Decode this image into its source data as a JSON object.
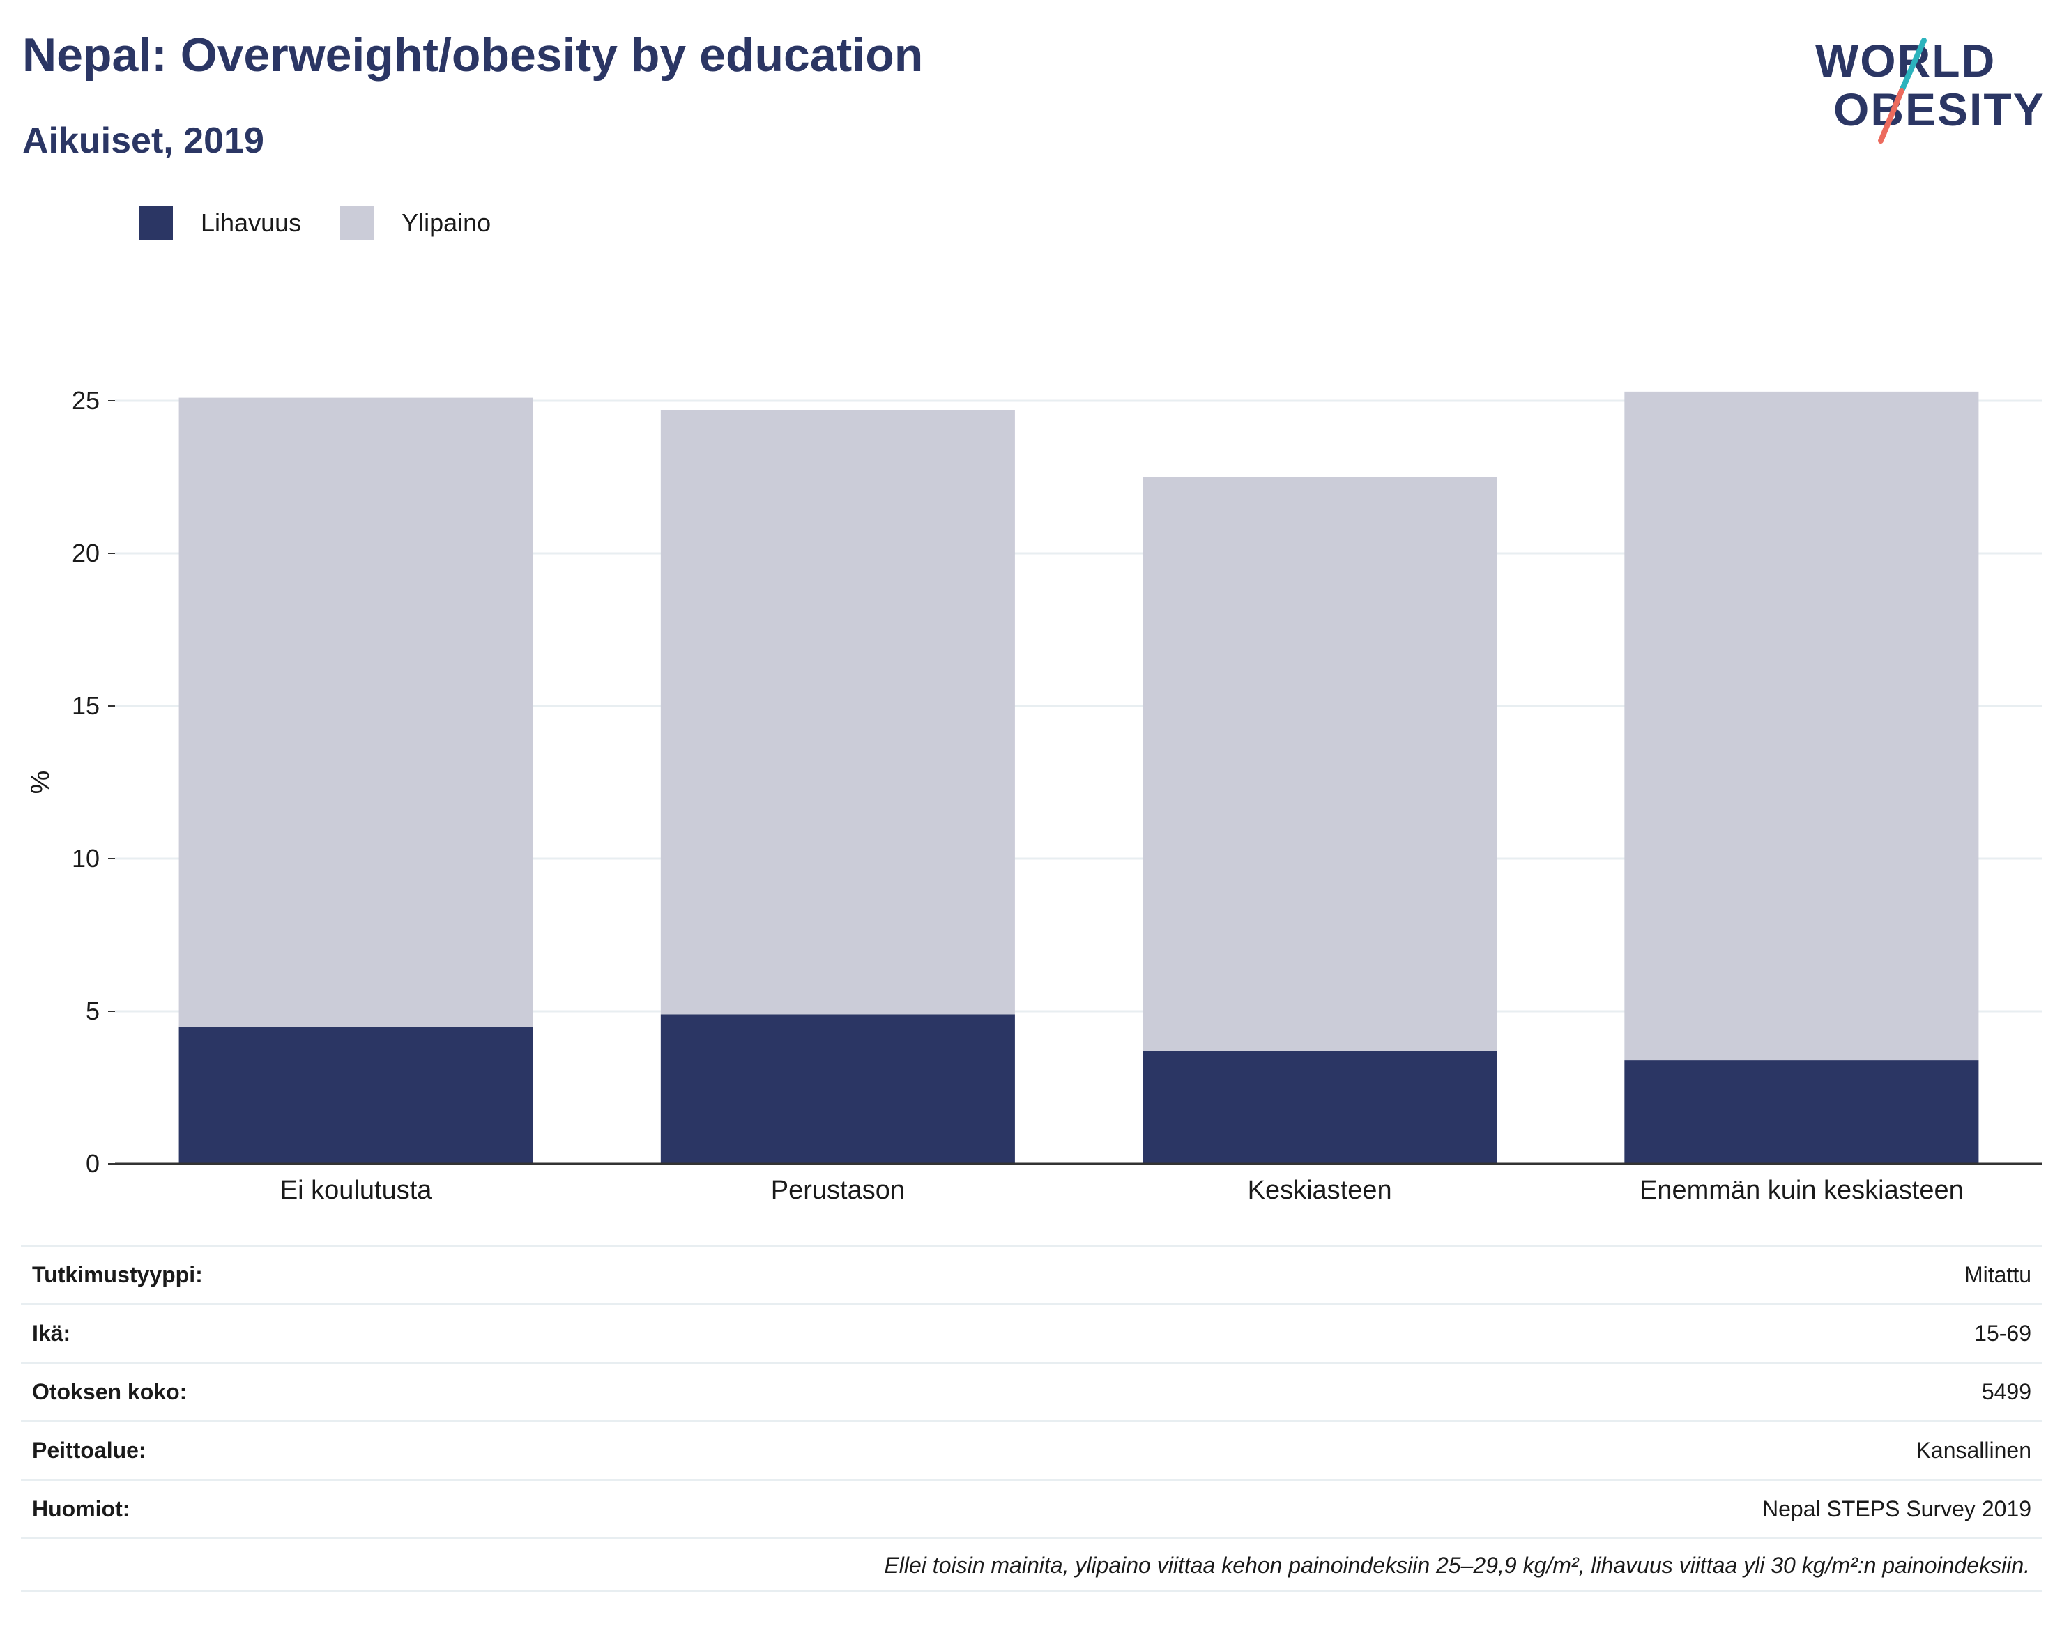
{
  "header": {
    "title": "Nepal: Overweight/obesity by education",
    "subtitle": "Aikuiset, 2019"
  },
  "logo": {
    "line1": "WORLD",
    "line2": "OBESITY"
  },
  "colors": {
    "obesity": "#2b3664",
    "overweight": "#cbccd8",
    "text": "#2b3664",
    "logo_teal": "#2cb3bd",
    "logo_coral": "#ec6b5e"
  },
  "legend": [
    {
      "label": "Lihavuus",
      "color": "#2b3664"
    },
    {
      "label": "Ylipaino",
      "color": "#cbccd8"
    }
  ],
  "chart_data": {
    "type": "bar",
    "stacked": true,
    "categories": [
      "Ei koulutusta",
      "Perustason",
      "Keskiasteen",
      "Enemmän kuin keskiasteen"
    ],
    "series": [
      {
        "name": "Lihavuus",
        "values": [
          4.5,
          4.9,
          3.7,
          3.4
        ]
      },
      {
        "name": "Ylipaino",
        "values": [
          20.6,
          19.8,
          18.8,
          21.9
        ]
      }
    ],
    "ylabel": "%",
    "yticks": [
      "0",
      "5",
      "10",
      "15",
      "20",
      "25"
    ],
    "ylim": [
      0,
      27
    ],
    "grid": true,
    "legend_position": "top-left"
  },
  "info": [
    {
      "label": "Tutkimustyyppi:",
      "value": "Mitattu"
    },
    {
      "label": "Ikä:",
      "value": "15-69"
    },
    {
      "label": "Otoksen koko:",
      "value": "5499"
    },
    {
      "label": "Peittoalue:",
      "value": "Kansallinen"
    },
    {
      "label": "Huomiot:",
      "value": "Nepal STEPS Survey 2019"
    }
  ],
  "footnote": "Ellei toisin mainita, ylipaino viittaa kehon painoindeksiin 25–29,9 kg/m², lihavuus viittaa yli 30 kg/m²:n painoindeksiin."
}
